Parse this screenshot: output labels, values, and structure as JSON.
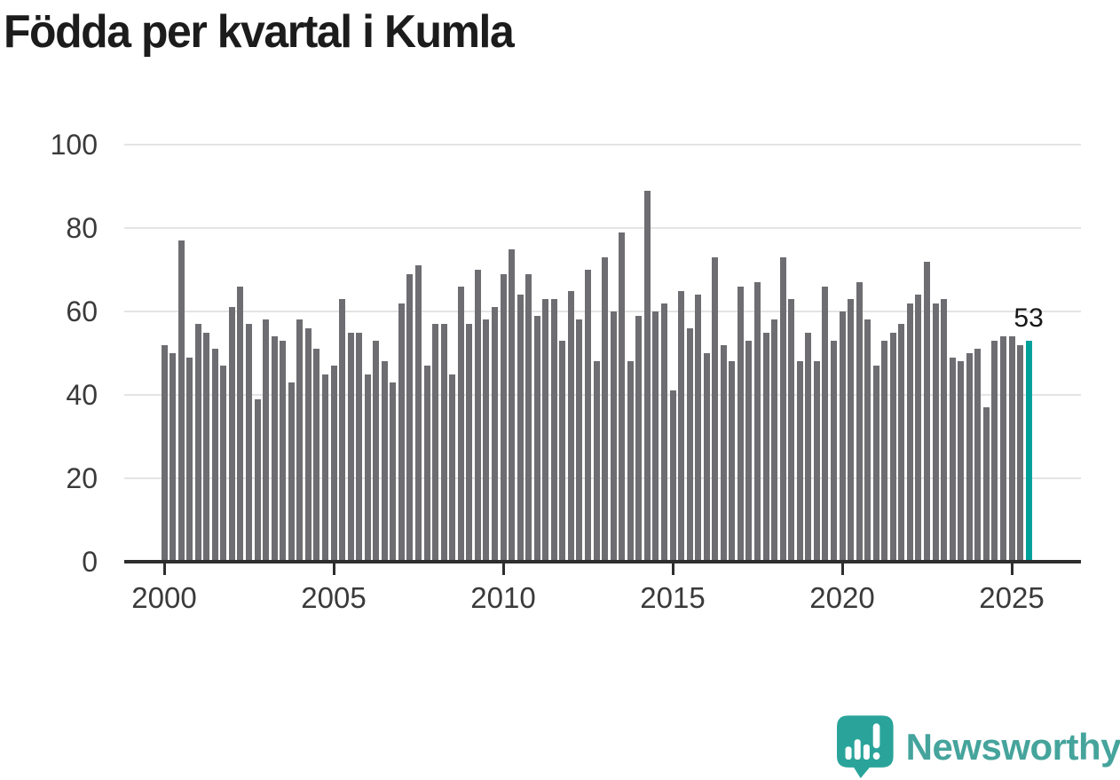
{
  "title": "Födda per kvartal i Kumla",
  "chart_data": {
    "type": "bar",
    "title": "Födda per kvartal i Kumla",
    "x_start": "2000-Q1",
    "x_end": "2025-Q3",
    "frequency": "quarterly",
    "values": [
      52,
      50,
      77,
      49,
      57,
      55,
      51,
      47,
      61,
      66,
      57,
      39,
      58,
      54,
      53,
      43,
      58,
      56,
      51,
      45,
      47,
      63,
      55,
      55,
      45,
      53,
      48,
      43,
      62,
      69,
      71,
      47,
      57,
      57,
      45,
      66,
      57,
      70,
      58,
      61,
      69,
      75,
      64,
      69,
      59,
      63,
      63,
      53,
      65,
      58,
      70,
      48,
      73,
      60,
      79,
      48,
      59,
      89,
      60,
      62,
      41,
      65,
      56,
      64,
      50,
      73,
      52,
      48,
      66,
      53,
      67,
      55,
      58,
      73,
      63,
      48,
      55,
      48,
      66,
      53,
      60,
      63,
      67,
      58,
      47,
      53,
      55,
      57,
      62,
      64,
      72,
      62,
      63,
      49,
      48,
      50,
      51,
      37,
      53,
      54,
      54,
      52,
      53
    ],
    "highlight": {
      "index": 102,
      "quarter": "2025-Q3",
      "value": 53,
      "label": "53",
      "color": "#00a19b"
    },
    "bar_color": "#6d6d72",
    "xticks": [
      "2000",
      "2005",
      "2010",
      "2015",
      "2020",
      "2025"
    ],
    "yticks": [
      0,
      20,
      40,
      60,
      80,
      100
    ],
    "ylim": [
      0,
      100
    ],
    "grid": true,
    "gridline_color": "#e4e4e4",
    "axis_color": "#2e2e2e"
  },
  "branding": {
    "logo_text": "Newsworthy",
    "logo_color": "#45a49c",
    "logo_icon": "newsworthy-speech-bubble-chart-icon",
    "icon_color": "#2aa49b"
  }
}
